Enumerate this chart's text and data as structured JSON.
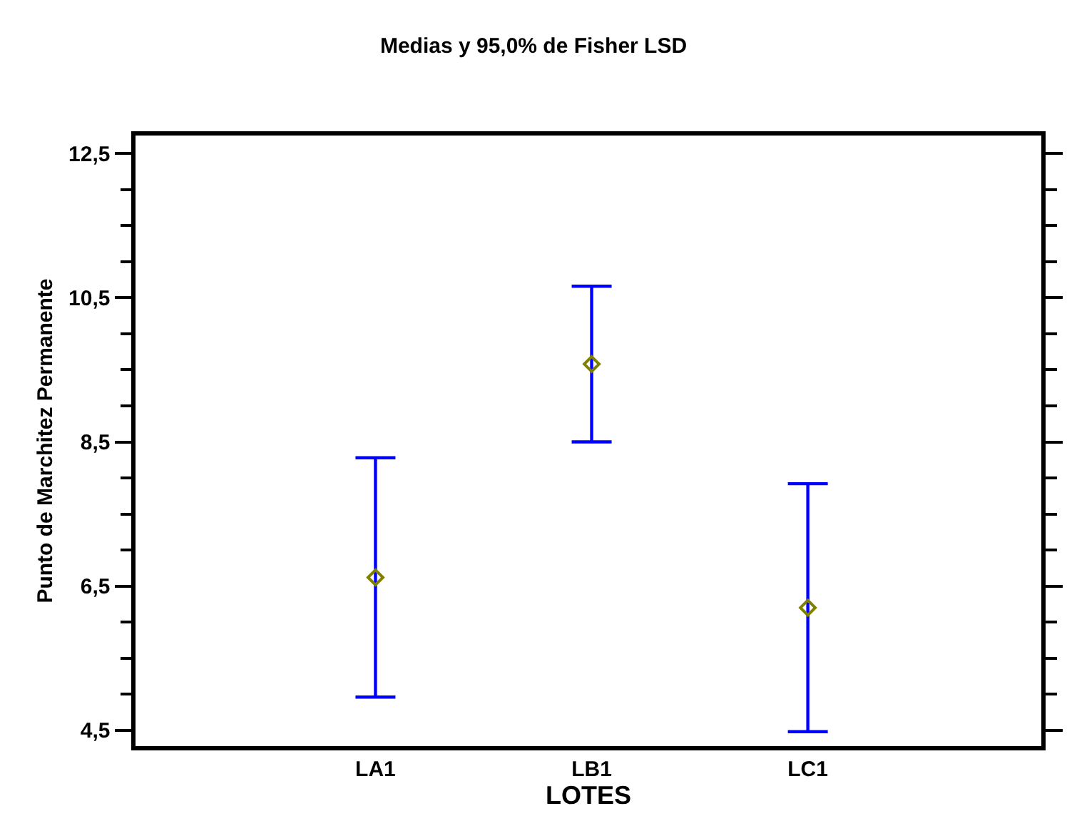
{
  "chart_data": {
    "type": "scatter",
    "title": "Medias y 95,0% de Fisher LSD",
    "xlabel": "LOTES",
    "ylabel": "Punto de Marchitez Permanente",
    "categories": [
      "LA1",
      "LB1",
      "LC1"
    ],
    "series": [
      {
        "color": "#808000",
        "values": [
          6.62,
          9.58,
          6.2
        ],
        "errors": [
          1.66,
          1.08,
          1.72
        ]
      }
    ],
    "ylim": [
      4.28,
      12.75
    ],
    "yticks": [
      {
        "value": 4.5,
        "label": "4,5"
      },
      {
        "value": 5,
        "label": null
      },
      {
        "value": 5.5,
        "label": null
      },
      {
        "value": 6,
        "label": null
      },
      {
        "value": 6.5,
        "label": "6,5"
      },
      {
        "value": 7,
        "label": null
      },
      {
        "value": 7.5,
        "label": null
      },
      {
        "value": 8,
        "label": null
      },
      {
        "value": 8.5,
        "label": "8,5"
      },
      {
        "value": 9,
        "label": null
      },
      {
        "value": 9.5,
        "label": null
      },
      {
        "value": 10,
        "label": null
      },
      {
        "value": 10.5,
        "label": "10,5"
      },
      {
        "value": 11,
        "label": null
      },
      {
        "value": 11.5,
        "label": null
      },
      {
        "value": 12,
        "label": null
      },
      {
        "value": 12.5,
        "label": "12,5"
      }
    ],
    "marker": "diamond"
  }
}
